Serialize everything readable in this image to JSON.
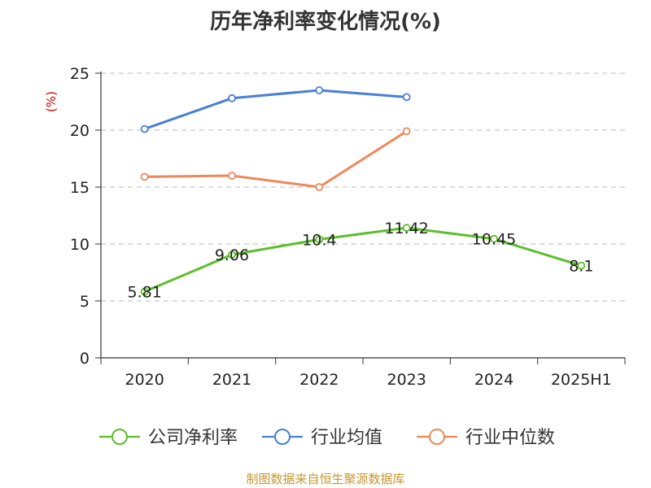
{
  "title": "历年净利率变化情况(%)",
  "footer": "制图数据来自恒生聚源数据库",
  "colors": {
    "footer": "#c8962e",
    "unit": "#cc0000",
    "axis": "#333333",
    "grid": "#bbbbbb"
  },
  "chart_data": {
    "type": "line",
    "title": "历年净利率变化情况(%)",
    "ylabel": "(%)",
    "ylim": [
      0,
      25
    ],
    "yticks": [
      0,
      5,
      10,
      15,
      20,
      25
    ],
    "grid": "horizontal dashed",
    "legend_position": "bottom",
    "categories": [
      "2020",
      "2021",
      "2022",
      "2023",
      "2024",
      "2025H1"
    ],
    "series": [
      {
        "name": "公司净利率",
        "color": "#5cbf2a",
        "values": [
          5.81,
          9.06,
          10.4,
          11.42,
          10.45,
          8.1
        ],
        "labels": [
          "5.81",
          "9.06",
          "10.4",
          "11.42",
          "10.45",
          "8.1"
        ],
        "show_labels": true
      },
      {
        "name": "行业均值",
        "color": "#4a7fd6",
        "values": [
          20.1,
          22.8,
          23.5,
          22.9,
          null,
          null
        ],
        "show_labels": false
      },
      {
        "name": "行业中位数",
        "color": "#f0875a",
        "values": [
          15.9,
          16.0,
          15.0,
          19.9,
          null,
          null
        ],
        "show_labels": false
      }
    ]
  }
}
